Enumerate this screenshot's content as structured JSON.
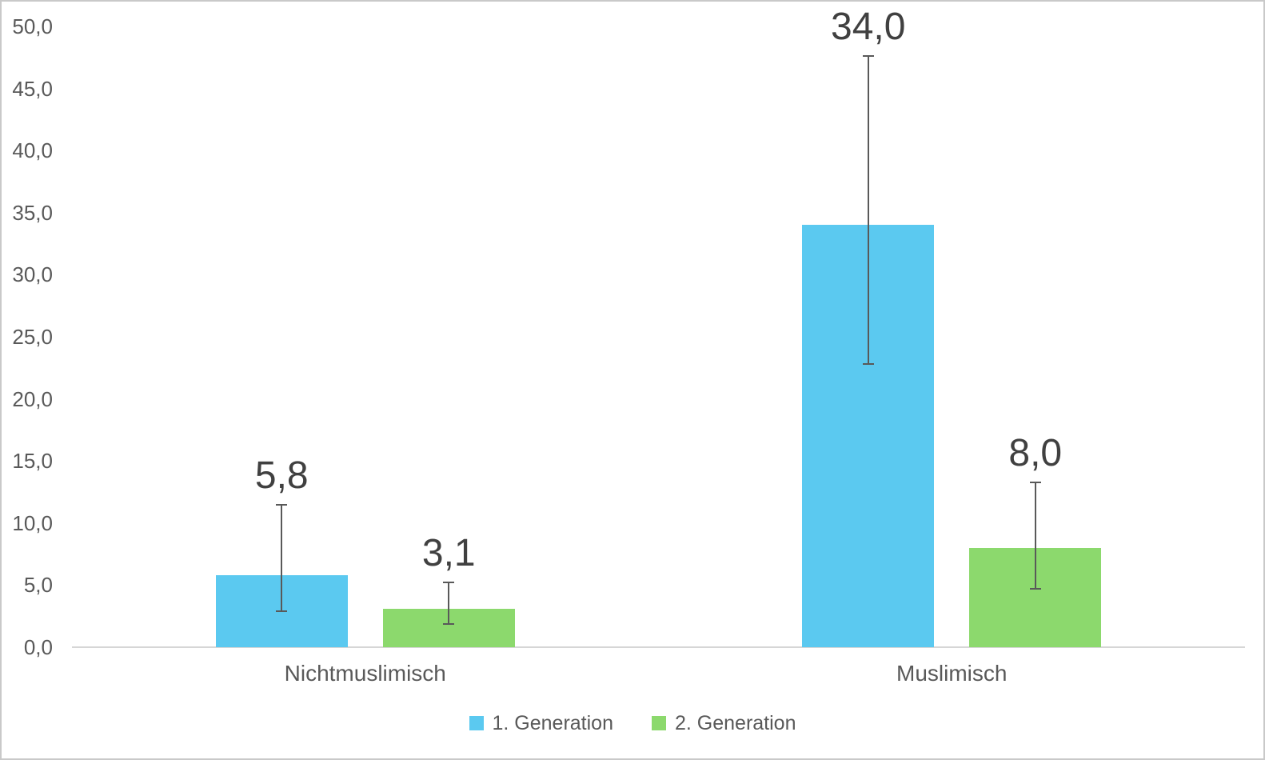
{
  "chart_data": {
    "type": "bar",
    "title": "",
    "categories": [
      "Nichtmuslimisch",
      "Muslimisch"
    ],
    "series": [
      {
        "name": "1. Generation",
        "color": "#5BC9F0",
        "values": [
          5.8,
          34.0
        ],
        "data_labels": [
          "5,8",
          "34,0"
        ],
        "error_bars": [
          {
            "low": 2.9,
            "high": 11.5
          },
          {
            "low": 22.8,
            "high": 47.6
          }
        ]
      },
      {
        "name": "2. Generation",
        "color": "#8CD96D",
        "values": [
          3.1,
          8.0
        ],
        "data_labels": [
          "3,1",
          "8,0"
        ],
        "error_bars": [
          {
            "low": 1.9,
            "high": 5.2
          },
          {
            "low": 4.7,
            "high": 13.3
          }
        ]
      }
    ],
    "ylim": [
      0,
      50
    ],
    "ytick_interval": 5,
    "ytick_labels": [
      "0,0",
      "5,0",
      "10,0",
      "15,0",
      "20,0",
      "25,0",
      "30,0",
      "35,0",
      "40,0",
      "45,0",
      "50,0"
    ],
    "xlabel": "",
    "ylabel": "",
    "grid": false,
    "legend_position": "bottom-center"
  },
  "colors": {
    "series_1": "#5BC9F0",
    "series_2": "#8CD96D",
    "axis_line": "#D6D6D6",
    "error_bar": "#595959",
    "axis_text": "#595959",
    "data_label_text": "#404040",
    "frame_border": "#C9C9C9",
    "background": "#FFFFFF"
  }
}
